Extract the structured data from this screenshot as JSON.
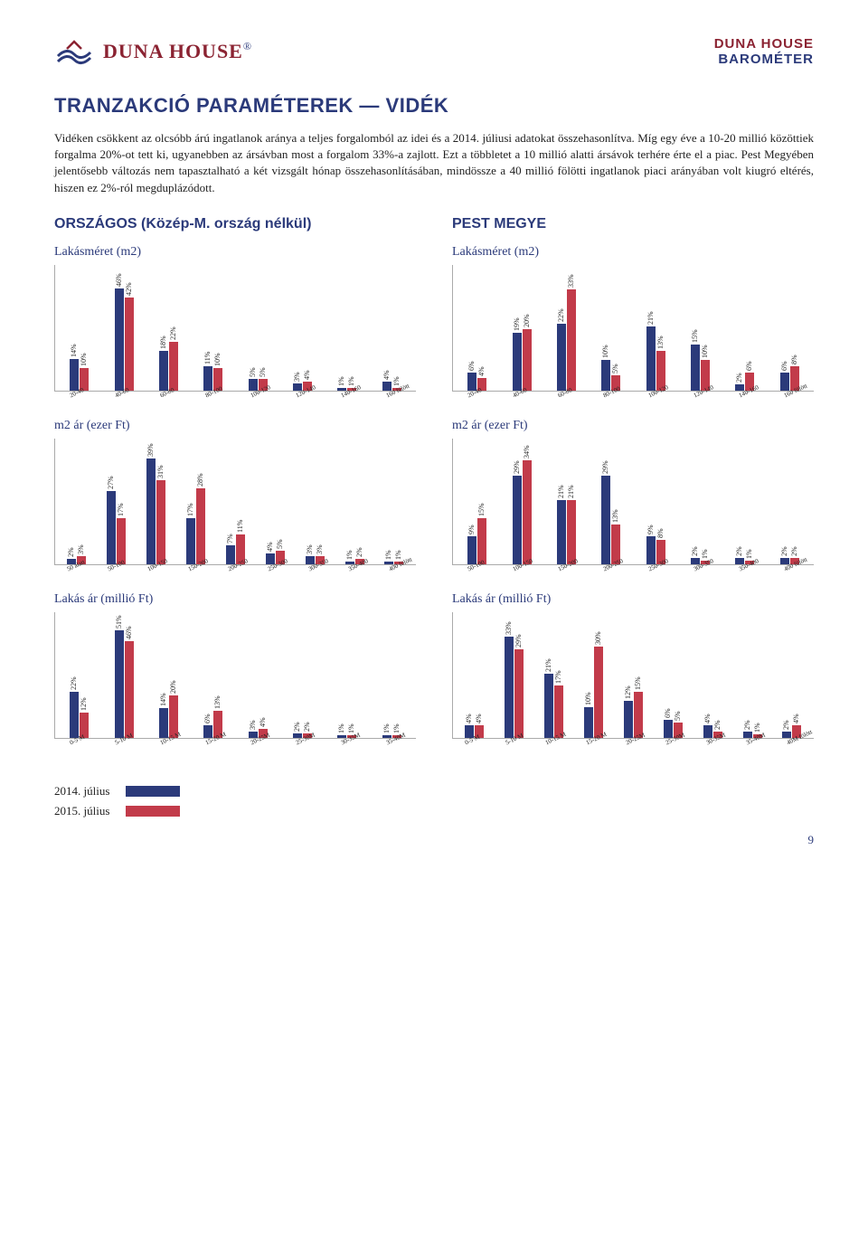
{
  "brand": {
    "name": "DUNA HOUSE",
    "top1": "DUNA HOUSE",
    "top2": "BAROMÉTER",
    "reg": "®"
  },
  "page_title": "TRANZAKCIÓ PARAMÉTEREK — VIDÉK",
  "intro": "Vidéken csökkent az olcsóbb árú ingatlanok aránya a teljes forgalomból az idei és a 2014. júliusi adatokat összehasonlítva. Míg egy éve a 10-20 millió közöttiek forgalma 20%-ot tett ki, ugyanebben az ársávban most a forgalom 33%-a zajlott. Ezt a többletet a 10 millió alatti ársávok terhére érte el a piac. Pest Megyében jelentősebb változás nem tapasztalható a két vizsgált hónap összehasonlításában, mindössze a 40 millió fölötti ingatlanok piaci arányában volt kiugró eltérés, hiszen ez 2%-ról megduplázódott.",
  "left_head": "ORSZÁGOS (Közép-M. ország nélkül)",
  "right_head": "PEST MEGYE",
  "colors": {
    "a": "#2b3a7a",
    "b": "#c23b4a",
    "axis": "#aaaaaa"
  },
  "legend": [
    {
      "label": "2014. július",
      "color": "#2b3a7a"
    },
    {
      "label": "2015. július",
      "color": "#c23b4a"
    }
  ],
  "page_num": "9",
  "charts": {
    "left": [
      {
        "title": "Lakásméret (m2)",
        "ymax": 55,
        "categories": [
          "20-40",
          "40-60",
          "60-80",
          "80-100",
          "100-120",
          "120-140",
          "140-160",
          "160 fölött"
        ],
        "series_a": [
          14,
          46,
          18,
          11,
          5,
          3,
          1,
          4
        ],
        "series_b": [
          10,
          42,
          22,
          10,
          5,
          4,
          1,
          1
        ]
      },
      {
        "title": "m2 ár (ezer Ft)",
        "ymax": 45,
        "categories": [
          "50 alatt",
          "50-100",
          "100-150",
          "150-200",
          "200-250",
          "250-300",
          "300-350",
          "350-400",
          "400 fölött"
        ],
        "series_a": [
          2,
          27,
          39,
          17,
          7,
          4,
          3,
          1,
          1
        ],
        "series_b": [
          3,
          17,
          31,
          28,
          11,
          5,
          3,
          2,
          1
        ]
      },
      {
        "title": "Lakás ár (millió Ft)",
        "ymax": 58,
        "categories": [
          "0-5 M",
          "5-10 M",
          "10-15 M",
          "15-20 M",
          "20-25M",
          "25-30M",
          "30-35M",
          "35-40M"
        ],
        "series_a": [
          22,
          51,
          14,
          6,
          3,
          2,
          1,
          1
        ],
        "series_b": [
          12,
          46,
          20,
          13,
          4,
          2,
          1,
          1
        ]
      }
    ],
    "right": [
      {
        "title": "Lakásméret (m2)",
        "ymax": 40,
        "categories": [
          "20-40",
          "40-60",
          "60-80",
          "80-100",
          "100-120",
          "120-140",
          "140-160",
          "160 fölött"
        ],
        "series_a": [
          6,
          19,
          22,
          10,
          21,
          15,
          2,
          6
        ],
        "series_b": [
          4,
          20,
          33,
          5,
          13,
          10,
          6,
          8
        ]
      },
      {
        "title": "m2 ár (ezer Ft)",
        "ymax": 40,
        "categories": [
          "50-100",
          "100-150",
          "150-200",
          "200-250",
          "250-300",
          "300-350",
          "350-400",
          "400 fölött"
        ],
        "series_a": [
          9,
          29,
          21,
          29,
          9,
          2,
          2,
          2
        ],
        "series_b": [
          15,
          34,
          21,
          13,
          8,
          1,
          1,
          2
        ]
      },
      {
        "title": "Lakás ár (millió Ft)",
        "ymax": 40,
        "categories": [
          "0-5 M",
          "5-10 M",
          "10-15 M",
          "15-20 M",
          "20-25M",
          "25-30M",
          "30-35M",
          "35-40M",
          "40M fölött"
        ],
        "series_a": [
          4,
          33,
          21,
          10,
          12,
          6,
          4,
          2,
          2
        ],
        "series_b": [
          4,
          29,
          17,
          30,
          15,
          5,
          2,
          1,
          4
        ]
      }
    ]
  }
}
